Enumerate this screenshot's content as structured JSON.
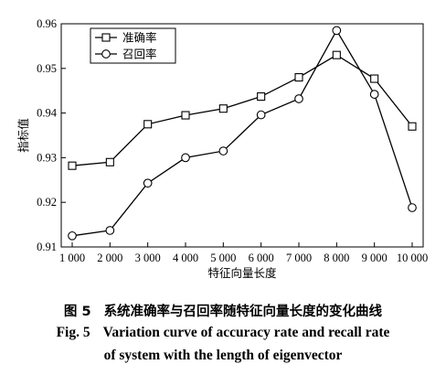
{
  "chart_data": {
    "type": "line",
    "xlabel": "特征向量长度",
    "ylabel": "指标值",
    "x": [
      1000,
      2000,
      3000,
      4000,
      5000,
      6000,
      7000,
      8000,
      9000,
      10000
    ],
    "xtick_labels": [
      "1 000",
      "2 000",
      "3 000",
      "4 000",
      "5 000",
      "6 000",
      "7 000",
      "8 000",
      "9 000",
      "10 000"
    ],
    "ylim": [
      0.91,
      0.96
    ],
    "yticks": [
      0.91,
      0.92,
      0.93,
      0.94,
      0.95,
      0.96
    ],
    "ytick_labels": [
      "0.91",
      "0.92",
      "0.93",
      "0.94",
      "0.95",
      "0.96"
    ],
    "grid": false,
    "legend_position": "top-left",
    "series": [
      {
        "name": "准确率",
        "marker": "square",
        "values": [
          0.9282,
          0.929,
          0.9375,
          0.9395,
          0.941,
          0.9437,
          0.948,
          0.953,
          0.9477,
          0.937
        ]
      },
      {
        "name": "召回率",
        "marker": "circle",
        "values": [
          0.9125,
          0.9137,
          0.9243,
          0.93,
          0.9315,
          0.9396,
          0.9432,
          0.9585,
          0.9442,
          0.9188
        ]
      }
    ]
  },
  "caption": {
    "cn_label": "图 5",
    "cn_text": "系统准确率与召回率随特征向量长度的变化曲线",
    "en_label": "Fig. 5",
    "en_line1": "Variation curve of accuracy rate and recall rate",
    "en_line2": "of system with the length of eigenvector"
  }
}
